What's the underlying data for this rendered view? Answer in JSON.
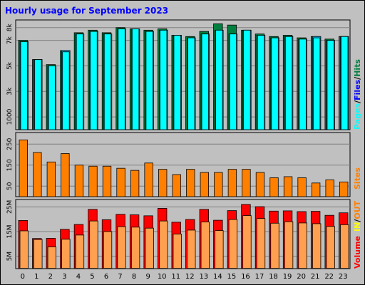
{
  "title": "Hourly usage for September 2023",
  "colors": {
    "frame_bg": "#c0c0c0",
    "plot_bg": "#c0c0c0",
    "title": "#0000ff",
    "hits": "#008040",
    "files": "#00c0ff",
    "pages": "#00ffff",
    "sites": "#ff8000",
    "kbytes_out": "#ff0000",
    "volume": "#ffa050",
    "kbytes_in": "#ffff00"
  },
  "legend": {
    "pages": "Pages",
    "files": "Files",
    "hits": "Hits",
    "sites": "Sites",
    "out": "OUT",
    "in": "IN",
    "volume": "Volume",
    "sep": "/"
  },
  "chart_data": [
    {
      "type": "bar",
      "panel": "top",
      "categories": [
        "0",
        "1",
        "2",
        "3",
        "4",
        "5",
        "6",
        "7",
        "8",
        "9",
        "10",
        "11",
        "12",
        "13",
        "14",
        "15",
        "16",
        "17",
        "18",
        "19",
        "20",
        "21",
        "22",
        "23"
      ],
      "ytick_labels": [
        "1000",
        "3k",
        "5k",
        "7k",
        "8k"
      ],
      "ytick_values": [
        1000,
        3000,
        5000,
        7000,
        8000
      ],
      "ylim": [
        0,
        8600
      ],
      "series": [
        {
          "name": "Hits",
          "values": [
            7000,
            5500,
            5100,
            6200,
            7600,
            7800,
            7600,
            8000,
            7900,
            7800,
            7900,
            7400,
            7300,
            7700,
            8300,
            8200,
            7800,
            7500,
            7300,
            7400,
            7200,
            7300,
            7100,
            7300
          ]
        },
        {
          "name": "Files",
          "values": [
            6900,
            5500,
            5000,
            6200,
            7500,
            7700,
            7500,
            7900,
            7900,
            7700,
            7800,
            7400,
            7200,
            7500,
            7800,
            7500,
            7800,
            7400,
            7200,
            7300,
            7100,
            7300,
            7000,
            7300
          ]
        },
        {
          "name": "Pages",
          "values": [
            6900,
            5500,
            5000,
            6100,
            7500,
            7700,
            7500,
            7900,
            7900,
            7700,
            7800,
            7400,
            7200,
            7500,
            7800,
            7500,
            7800,
            7400,
            7200,
            7300,
            7100,
            7200,
            7000,
            7300
          ]
        }
      ]
    },
    {
      "type": "bar",
      "panel": "middle",
      "categories": [
        "0",
        "1",
        "2",
        "3",
        "4",
        "5",
        "6",
        "7",
        "8",
        "9",
        "10",
        "11",
        "12",
        "13",
        "14",
        "15",
        "16",
        "17",
        "18",
        "19",
        "20",
        "21",
        "22",
        "23"
      ],
      "ytick_labels": [
        "50",
        "150",
        "250"
      ],
      "ytick_values": [
        50,
        150,
        250
      ],
      "ylim": [
        0,
        305
      ],
      "series": [
        {
          "name": "Sites",
          "values": [
            270,
            210,
            165,
            205,
            150,
            145,
            145,
            135,
            125,
            160,
            130,
            105,
            130,
            115,
            115,
            130,
            130,
            115,
            90,
            95,
            90,
            65,
            80,
            70
          ]
        }
      ]
    },
    {
      "type": "bar",
      "panel": "bottom",
      "categories": [
        "0",
        "1",
        "2",
        "3",
        "4",
        "5",
        "6",
        "7",
        "8",
        "9",
        "10",
        "11",
        "12",
        "13",
        "14",
        "15",
        "16",
        "17",
        "18",
        "19",
        "20",
        "21",
        "22",
        "23"
      ],
      "ytick_labels": [
        "5M",
        "15M",
        "25M"
      ],
      "ytick_values": [
        5,
        15,
        25
      ],
      "ylim": [
        0,
        28
      ],
      "series": [
        {
          "name": "OUT",
          "values": [
            19.5,
            12.2,
            12.3,
            15.9,
            17.9,
            24.0,
            19.8,
            22.0,
            21.8,
            21.4,
            24.4,
            18.8,
            19.9,
            24.0,
            19.6,
            23.5,
            26.0,
            25.1,
            23.3,
            23.4,
            23.1,
            23.2,
            21.6,
            22.6
          ]
        },
        {
          "name": "Volume",
          "values": [
            15.3,
            11.8,
            8.8,
            11.9,
            13.6,
            19.3,
            15.0,
            17.0,
            16.8,
            16.4,
            19.3,
            14.0,
            15.6,
            18.9,
            15.4,
            19.9,
            21.5,
            20.3,
            18.4,
            19.0,
            18.5,
            18.2,
            17.1,
            17.8
          ]
        },
        {
          "name": "IN",
          "values": [
            0.1,
            0.1,
            0.1,
            0.1,
            0.1,
            0.1,
            0.1,
            0.1,
            0.1,
            0.1,
            0.1,
            0.1,
            0.1,
            0.1,
            0.1,
            0.1,
            0.1,
            0.1,
            0.1,
            0.1,
            0.1,
            0.1,
            0.1,
            0.1
          ]
        }
      ]
    }
  ]
}
